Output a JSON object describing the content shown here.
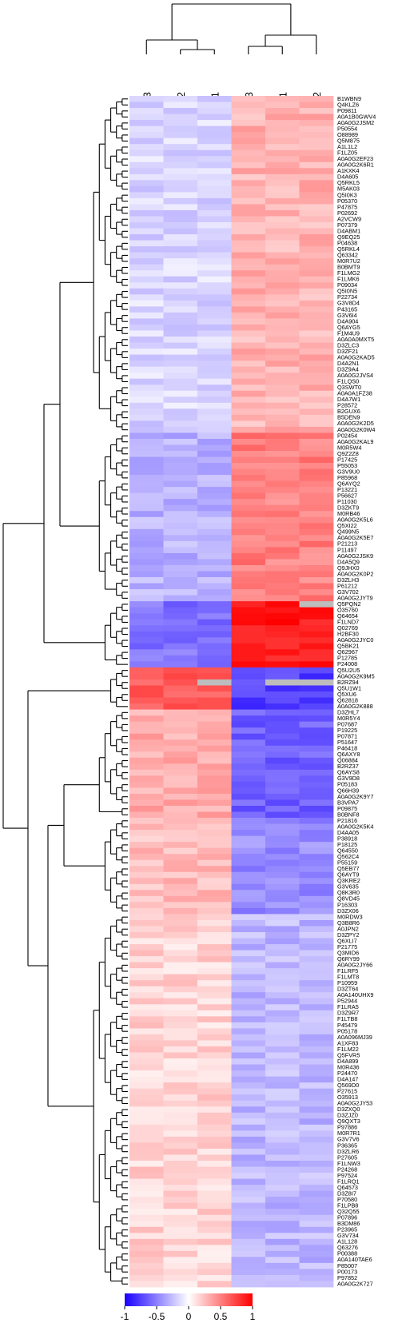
{
  "chart_data": {
    "type": "heatmap",
    "title": "",
    "columns": [
      "HF3",
      "HF2",
      "HF1",
      "C3",
      "C1",
      "C2"
    ],
    "colorbar": {
      "min": -1,
      "max": 1,
      "low_color": "#1a00ff",
      "mid_color": "#ffffff",
      "high_color": "#ff0000",
      "na_color": "#bdbdbd",
      "tick_labels": [
        "-1",
        "-0.5",
        "0",
        "0.5",
        "1"
      ],
      "tick_values": [
        -1,
        -0.5,
        0,
        0.5,
        1
      ]
    },
    "rows": [
      "B1WBN9",
      "Q4KLZ6",
      "P09811",
      "A0A1B0GWV4",
      "A0A0G2JSM2",
      "P50554",
      "O88989",
      "Q5M875",
      "A1L1L2",
      "F1LZ05",
      "A0A0G2EF23",
      "A0A0G2K6R1",
      "A1KXK4",
      "D4A605",
      "Q5RKL5",
      "M5AK03",
      "Q5I0K3",
      "P05370",
      "P47875",
      "P02692",
      "A2VCW9",
      "P07379",
      "D4ABM1",
      "Q9EQ25",
      "P04638",
      "Q5RKL4",
      "Q63342",
      "M0R7U2",
      "B0BMT9",
      "F1LMG2",
      "F1LMK6",
      "P09034",
      "Q5I0N5",
      "P22734",
      "G3V8D4",
      "P43165",
      "G3V6I4",
      "D4A904",
      "Q6AYG5",
      "F1M4U9",
      "A0A0A0MXT5",
      "D3ZLC3",
      "D3ZF21",
      "A0A0G2KAD5",
      "D4A2N1",
      "D3Z9A4",
      "A0A0G2JVS4",
      "F1LQS0",
      "Q3SWT0",
      "A0A0A1FZ38",
      "D4A7W1",
      "P28572",
      "B2GUX6",
      "B5DEN9",
      "A0A0G2K2D5",
      "A0A0G2K0W4",
      "P02454",
      "A0A0G2KAL9",
      "M0R5W4",
      "Q9Z2Z8",
      "P17425",
      "P55053",
      "G3V9U0",
      "P85968",
      "Q6AYQ2",
      "P13221",
      "P56627",
      "P11030",
      "D3ZKT9",
      "M0RB46",
      "A0A0G2K5L6",
      "Q5XI22",
      "Q499N5",
      "A0A0G2K5E7",
      "P21213",
      "P11497",
      "A0A0G2JSK9",
      "D4A5Q9",
      "Q9JHX0",
      "A0A0G2K0P2",
      "D3ZLH3",
      "P61212",
      "G3V702",
      "A0A0G2JYT9",
      "Q5PQN2",
      "O35760",
      "Q64654",
      "F1LND7",
      "Q02769",
      "H2BF30",
      "A0A0G2JYC0",
      "Q5BK21",
      "Q62967",
      "P12785",
      "P24008",
      "Q5U2U5",
      "A0A0G2K9M5",
      "B2RZ94",
      "Q5U1W1",
      "Q5XU6",
      "Q62818",
      "A0A0G2K888",
      "D3ZHL7",
      "M0R5Y4",
      "P07687",
      "P19225",
      "P07871",
      "P51647",
      "P46418",
      "Q6AXY8",
      "Q06884",
      "B2RZ37",
      "Q6AYS8",
      "G3V9D8",
      "P05183",
      "Q66H39",
      "A0A0G2K9Y7",
      "B3VPA7",
      "P09875",
      "B0BNF8",
      "P21816",
      "A0A0G2K5K4",
      "D4AA05",
      "P38918",
      "P18125",
      "Q64550",
      "Q562C4",
      "P55159",
      "Q5EB77",
      "Q6AYT9",
      "Q3KRE2",
      "G3V635",
      "Q8K3R0",
      "Q8VD45",
      "P16303",
      "D3ZX06",
      "M0RDW3",
      "Q3B8R6",
      "A0JPN2",
      "D3ZPY2",
      "Q6XLI7",
      "P21775",
      "Q3MID6",
      "Q6RY99",
      "A0A0G2JY66",
      "F1LRF5",
      "F1LMT8",
      "P10959",
      "D3ZT64",
      "A0A140UHX9",
      "P52944",
      "F1LRA5",
      "D3Z9R7",
      "F1LTB8",
      "P45479",
      "P05178",
      "A0A096MJ39",
      "A1XF83",
      "F1LM22",
      "Q5FVR5",
      "D4A899",
      "M0R436",
      "P24470",
      "D4A147",
      "Q569D0",
      "P27615",
      "O35913",
      "A0A0G2JY53",
      "D3ZXQ0",
      "D3ZJZ0",
      "Q9QXT3",
      "P97886",
      "M0R7R1",
      "G3V7V6",
      "P36365",
      "D3ZLR6",
      "P27605",
      "F1LNW3",
      "P24268",
      "P97524",
      "F1LRQ1",
      "Q64573",
      "D3Z8I7",
      "P70580",
      "F1LPB8",
      "Q32Q55",
      "P07896",
      "B3DM86",
      "P23965",
      "G3V734",
      "A1L128",
      "Q63276",
      "P00388",
      "A0A140TAE6",
      "P85007",
      "P00173",
      "P97852",
      "A0A0G2K727"
    ]
  }
}
